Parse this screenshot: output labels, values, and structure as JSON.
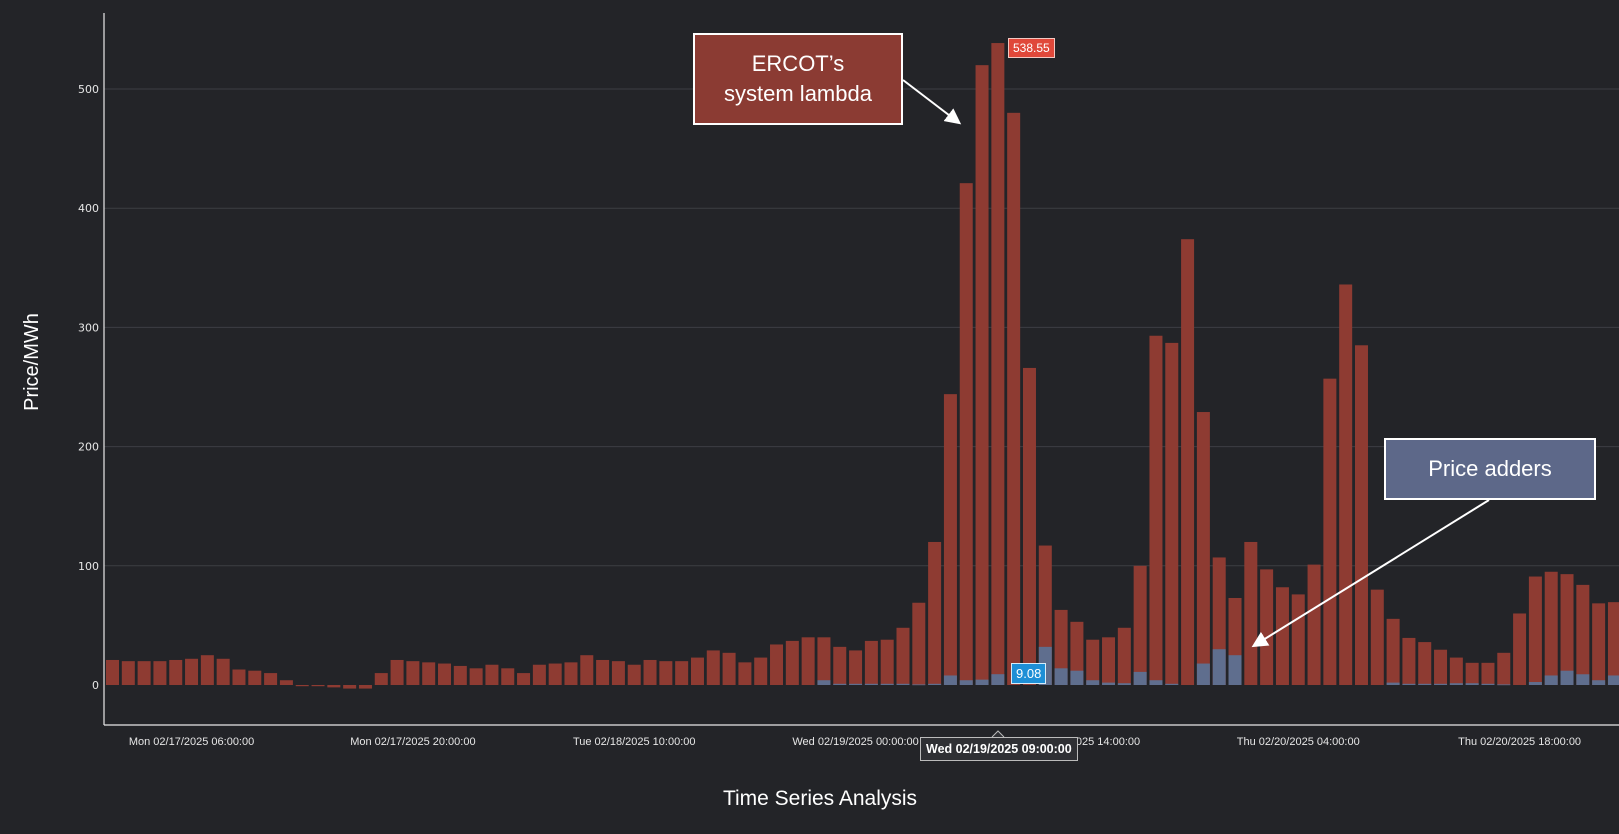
{
  "chart_data": {
    "type": "bar",
    "title": "",
    "xlabel": "Time Series Analysis",
    "ylabel": "Price/MWh",
    "ylim": [
      -30,
      560
    ],
    "yticks": [
      0,
      100,
      200,
      300,
      400,
      500
    ],
    "grid": true,
    "legend": "none",
    "bars_overlap": true,
    "x_tick_labels": [
      {
        "index": 5,
        "label": "Mon 02/17/2025 06:00:00"
      },
      {
        "index": 19,
        "label": "Mon 02/17/2025 20:00:00"
      },
      {
        "index": 33,
        "label": "Tue 02/18/2025 10:00:00"
      },
      {
        "index": 47,
        "label": "Wed 02/19/2025 00:00:00"
      },
      {
        "index": 61,
        "label": "Wed 02/19/2025 14:00:00"
      },
      {
        "index": 75,
        "label": "Thu 02/20/2025 04:00:00"
      },
      {
        "index": 89,
        "label": "Thu 02/20/2025 18:00:00"
      }
    ],
    "series": [
      {
        "color": "#8e3b32",
        "values": [
          21,
          20,
          20,
          20,
          21,
          22,
          25,
          22,
          13,
          12,
          10,
          4,
          -1,
          -1,
          -2,
          -3,
          -3,
          10,
          21,
          20,
          19,
          18,
          16,
          14,
          17,
          14,
          10,
          17,
          18,
          19,
          25,
          21,
          20,
          17,
          21,
          20,
          20,
          23,
          29,
          27,
          19,
          23,
          34,
          37,
          40,
          40,
          32,
          29,
          37,
          38,
          48,
          69,
          120,
          244,
          421,
          520,
          538.55,
          480,
          266,
          117,
          63,
          53,
          38,
          40,
          48,
          100,
          293,
          287,
          374,
          229,
          107,
          73,
          120,
          97,
          82,
          76,
          101,
          257,
          336,
          285,
          80,
          55.5,
          39.5,
          36,
          29.6,
          23,
          18.6,
          18.6,
          27,
          60,
          91,
          95,
          93,
          84,
          68.5,
          69.5
        ]
      },
      {
        "color": "#5f6e8e",
        "values": [
          0,
          0,
          0,
          0,
          0,
          0,
          0,
          0,
          0,
          0,
          0,
          0,
          0,
          0,
          0,
          0,
          0,
          0,
          0,
          0,
          0,
          0,
          0,
          0,
          0,
          0,
          0,
          0,
          0,
          0,
          0,
          0,
          0,
          0,
          0,
          0,
          0,
          0,
          0,
          0,
          0,
          0,
          0,
          0,
          0,
          4,
          1,
          1,
          1,
          1,
          1,
          0.5,
          1,
          8,
          4,
          4.5,
          9.08,
          0,
          0,
          32,
          14,
          12,
          4,
          2,
          1.5,
          11,
          4,
          1,
          0,
          18,
          30,
          25,
          0,
          0,
          0,
          0,
          0,
          0,
          0,
          0,
          0,
          2,
          1,
          1,
          1,
          1.5,
          1.5,
          1,
          0.5,
          0,
          2.5,
          8,
          12,
          9,
          4,
          8
        ]
      }
    ],
    "highlight": {
      "index": 56,
      "tooltip": "Wed 02/19/2025 09:00:00",
      "red_label": "538.55",
      "blue_label": "9.08"
    }
  },
  "annotations": {
    "lambda": "ERCOT’s system lambda",
    "adders": "Price adders"
  },
  "colors": {
    "background": "#232428",
    "lambda": "#8e3b32",
    "adders": "#5f6e8e",
    "red_flag": "#e0483a",
    "blue_flag": "#1e8fd6"
  }
}
